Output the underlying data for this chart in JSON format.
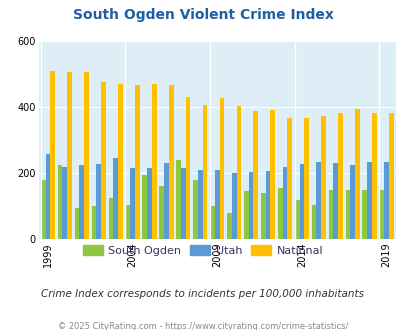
{
  "title": "South Ogden Violent Crime Index",
  "years": [
    1999,
    2000,
    2001,
    2002,
    2003,
    2004,
    2005,
    2006,
    2007,
    2008,
    2009,
    2010,
    2011,
    2012,
    2013,
    2014,
    2015,
    2016,
    2017,
    2018,
    2019
  ],
  "south_ogden": [
    180,
    225,
    95,
    100,
    125,
    105,
    195,
    160,
    240,
    180,
    100,
    80,
    145,
    140,
    155,
    120,
    105,
    150,
    148,
    148,
    148
  ],
  "utah": [
    258,
    220,
    225,
    228,
    245,
    215,
    215,
    230,
    215,
    210,
    210,
    200,
    205,
    208,
    218,
    228,
    235,
    232,
    225,
    235,
    235
  ],
  "national": [
    510,
    508,
    508,
    476,
    470,
    468,
    470,
    467,
    430,
    406,
    428,
    405,
    388,
    392,
    368,
    366,
    373,
    383,
    395,
    382,
    382
  ],
  "color_south_ogden": "#8dc63f",
  "color_utah": "#5b9bd5",
  "color_national": "#ffc000",
  "bg_color": "#ddeef6",
  "ylim": [
    0,
    600
  ],
  "yticks": [
    0,
    200,
    400,
    600
  ],
  "xlabel_ticks": [
    1999,
    2004,
    2009,
    2014,
    2019
  ],
  "subtitle": "Crime Index corresponds to incidents per 100,000 inhabitants",
  "footer": "© 2025 CityRating.com - https://www.cityrating.com/crime-statistics/",
  "legend_labels": [
    "South Ogden",
    "Utah",
    "National"
  ],
  "title_color": "#1f5fa6",
  "subtitle_color": "#333333",
  "footer_color": "#888888"
}
